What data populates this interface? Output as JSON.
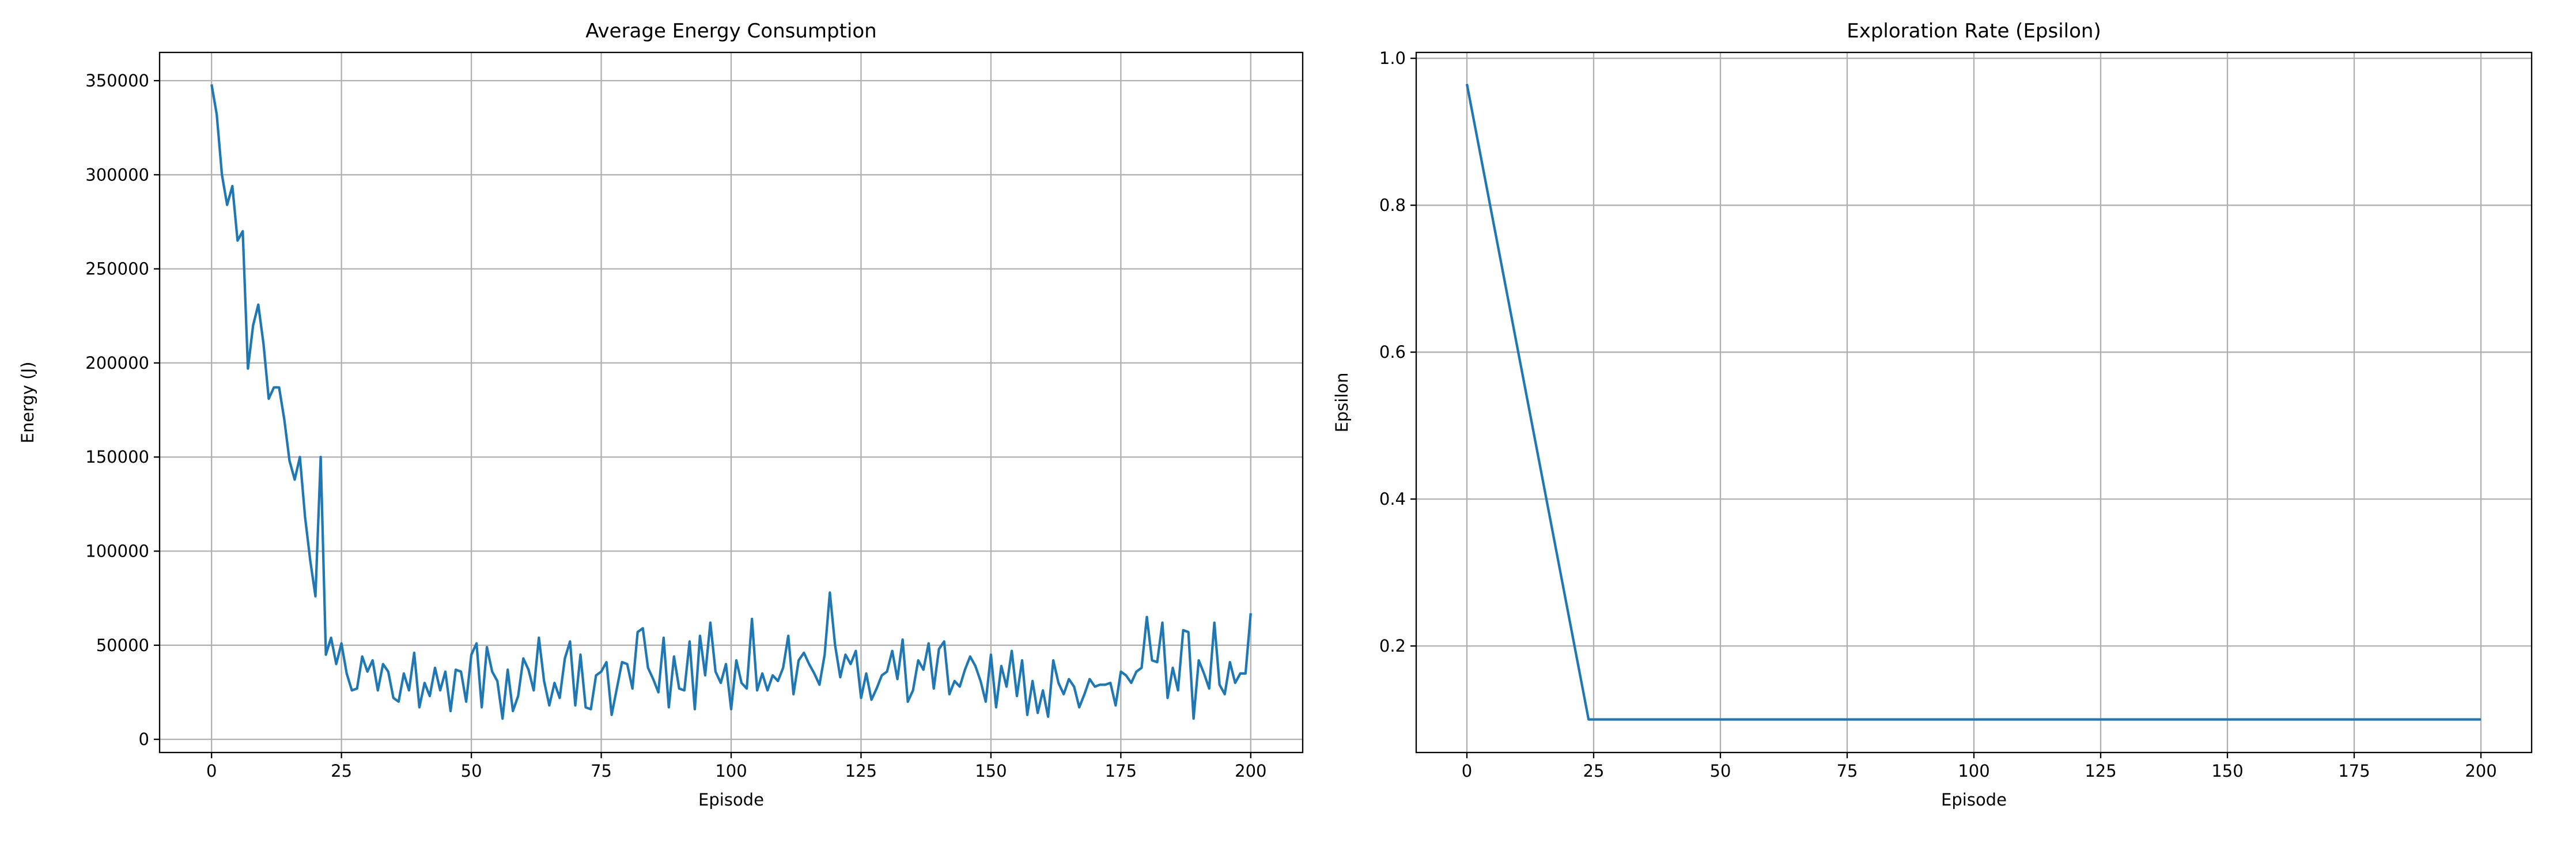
{
  "chart_data": [
    {
      "type": "line",
      "title": "Average Energy Consumption",
      "xlabel": "Episode",
      "ylabel": "Energy (J)",
      "color": "#1f77b4",
      "grid": true,
      "x": [
        0,
        1,
        2,
        3,
        4,
        5,
        6,
        7,
        8,
        9,
        10,
        11,
        12,
        13,
        14,
        15,
        16,
        17,
        18,
        19,
        20,
        21,
        22,
        23,
        24,
        25,
        26,
        27,
        28,
        29,
        30,
        31,
        32,
        33,
        34,
        35,
        36,
        37,
        38,
        39,
        40,
        41,
        42,
        43,
        44,
        45,
        46,
        47,
        48,
        49,
        50,
        51,
        52,
        53,
        54,
        55,
        56,
        57,
        58,
        59,
        60,
        61,
        62,
        63,
        64,
        65,
        66,
        67,
        68,
        69,
        70,
        71,
        72,
        73,
        74,
        75,
        76,
        77,
        78,
        79,
        80,
        81,
        82,
        83,
        84,
        85,
        86,
        87,
        88,
        89,
        90,
        91,
        92,
        93,
        94,
        95,
        96,
        97,
        98,
        99,
        100,
        101,
        102,
        103,
        104,
        105,
        106,
        107,
        108,
        109,
        110,
        111,
        112,
        113,
        114,
        115,
        116,
        117,
        118,
        119,
        120,
        121,
        122,
        123,
        124,
        125,
        126,
        127,
        128,
        129,
        130,
        131,
        132,
        133,
        134,
        135,
        136,
        137,
        138,
        139,
        140,
        141,
        142,
        143,
        144,
        145,
        146,
        147,
        148,
        149,
        150,
        151,
        152,
        153,
        154,
        155,
        156,
        157,
        158,
        159,
        160,
        161,
        162,
        163,
        164,
        165,
        166,
        167,
        168,
        169,
        170,
        171,
        172,
        173,
        174,
        175,
        176,
        177,
        178,
        179,
        180,
        181,
        182,
        183,
        184,
        185,
        186,
        187,
        188,
        189,
        190,
        191,
        192,
        193,
        194,
        195,
        196,
        197,
        198,
        199,
        200
      ],
      "values": [
        348000,
        332000,
        300000,
        284000,
        294000,
        265000,
        270000,
        197000,
        220000,
        231000,
        210000,
        181000,
        187000,
        187000,
        170000,
        148000,
        138000,
        150000,
        118000,
        95000,
        76000,
        150000,
        45000,
        54000,
        40000,
        51000,
        35000,
        26000,
        27000,
        44000,
        36000,
        42000,
        26000,
        40000,
        36000,
        22000,
        20000,
        35000,
        26000,
        46000,
        17000,
        30000,
        23000,
        38000,
        26000,
        36000,
        15000,
        37000,
        36000,
        20000,
        45000,
        51000,
        17000,
        49000,
        36000,
        31000,
        11000,
        37000,
        15000,
        23000,
        43000,
        37000,
        26000,
        54000,
        31000,
        18000,
        30000,
        22000,
        43000,
        52000,
        18000,
        45000,
        17000,
        16000,
        34000,
        36000,
        41000,
        13000,
        27000,
        41000,
        40000,
        27000,
        57000,
        59000,
        38000,
        32000,
        25000,
        54000,
        17000,
        44000,
        27000,
        26000,
        52000,
        16000,
        55000,
        34000,
        62000,
        36000,
        30000,
        40000,
        16000,
        42000,
        30000,
        27000,
        64000,
        26000,
        35000,
        26000,
        34000,
        31000,
        38000,
        55000,
        24000,
        42000,
        46000,
        40000,
        35000,
        29000,
        45000,
        78000,
        50000,
        33000,
        45000,
        40000,
        47000,
        22000,
        35000,
        21000,
        27000,
        34000,
        36000,
        47000,
        32000,
        53000,
        20000,
        26000,
        42000,
        37000,
        51000,
        27000,
        48000,
        52000,
        24000,
        31000,
        28000,
        37000,
        44000,
        39000,
        31000,
        20000,
        45000,
        17000,
        39000,
        28000,
        47000,
        23000,
        42000,
        13000,
        31000,
        14000,
        26000,
        12000,
        42000,
        30000,
        24000,
        32000,
        28000,
        17000,
        24000,
        32000,
        28000,
        29000,
        29000,
        30000,
        18000,
        36000,
        34000,
        30000,
        36000,
        38000,
        65000,
        42000,
        41000,
        62000,
        22000,
        38000,
        26000,
        58000,
        57000,
        11000,
        42000,
        35000,
        27000,
        62000,
        29000,
        24000,
        41000,
        30000,
        35000,
        35000,
        67000
      ],
      "xlim": [
        -10,
        210
      ],
      "xticks": [
        0,
        25,
        50,
        75,
        100,
        125,
        150,
        175,
        200
      ],
      "ylim": [
        -7000,
        365000
      ],
      "yticks": [
        0,
        50000,
        100000,
        150000,
        200000,
        250000,
        300000,
        350000
      ]
    },
    {
      "type": "line",
      "title": "Exploration Rate (Epsilon)",
      "xlabel": "Episode",
      "ylabel": "Epsilon",
      "color": "#1f77b4",
      "grid": true,
      "x": [
        0,
        24,
        200
      ],
      "values": [
        0.965,
        0.1,
        0.1
      ],
      "xlim": [
        -10,
        210
      ],
      "xticks": [
        0,
        25,
        50,
        75,
        100,
        125,
        150,
        175,
        200
      ],
      "ylim": [
        0.055,
        1.008
      ],
      "yticks": [
        0.2,
        0.4,
        0.6,
        0.8,
        {
          "value": 1,
          "label": "1.0"
        }
      ]
    }
  ]
}
